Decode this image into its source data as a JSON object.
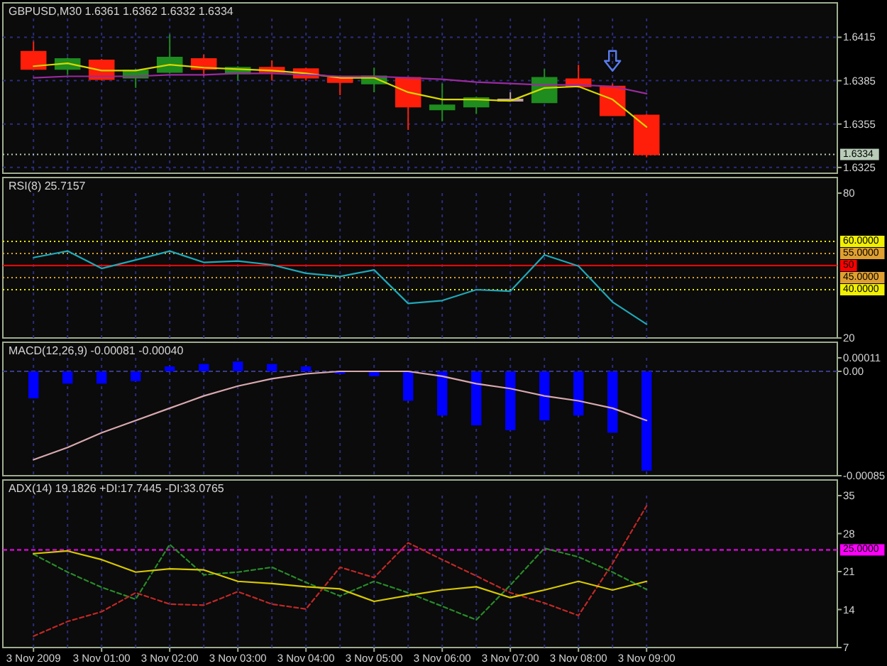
{
  "chart_data": [
    {
      "type": "candlestick",
      "title": "GBPUSD,M30 1.6361 1.6362 1.6332 1.6334",
      "categories": [
        null,
        null,
        null,
        null,
        null,
        null,
        null,
        null,
        null,
        null,
        null,
        null,
        null,
        null,
        null,
        null,
        null,
        null,
        null
      ],
      "ohlc": [
        [
          1.6405,
          1.6412,
          1.6393,
          1.6393
        ],
        [
          1.6393,
          1.6401,
          1.6389,
          1.64
        ],
        [
          1.6399,
          1.64,
          1.6385,
          1.6386
        ],
        [
          1.6387,
          1.6393,
          1.638,
          1.6392
        ],
        [
          1.6391,
          1.6417,
          1.639,
          1.6401
        ],
        [
          1.64,
          1.6403,
          1.6388,
          1.6393
        ],
        [
          1.639,
          1.6395,
          1.6385,
          1.6394
        ],
        [
          1.6394,
          1.6399,
          1.6385,
          1.6391
        ],
        [
          1.6393,
          1.6394,
          1.6385,
          1.6387
        ],
        [
          1.6387,
          1.6388,
          1.6375,
          1.6384
        ],
        [
          1.6383,
          1.6394,
          1.6377,
          1.6388
        ],
        [
          1.6387,
          1.6387,
          1.6351,
          1.6367
        ],
        [
          1.6365,
          1.6383,
          1.6357,
          1.6368
        ],
        [
          1.6367,
          1.6374,
          1.6362,
          1.6373
        ],
        [
          1.6372,
          1.6377,
          1.6371,
          1.6372
        ],
        [
          1.637,
          1.6393,
          1.637,
          1.6387
        ],
        [
          1.6386,
          1.6396,
          1.638,
          1.6381
        ],
        [
          1.6381,
          1.6383,
          1.6361,
          1.6361
        ],
        [
          1.6361,
          1.6362,
          1.6332,
          1.6334
        ]
      ],
      "colors": [
        "#ff1e0a",
        "#1e8c1e",
        "#ff1e0a",
        "#1e8c1e",
        "#1e8c1e",
        "#ff1e0a",
        "#1e8c1e",
        "#ff1e0a",
        "#ff1e0a",
        "#ff1e0a",
        "#1e8c1e",
        "#ff1e0a",
        "#1e8c1e",
        "#1e8c1e",
        "#c0a0a0",
        "#1e8c1e",
        "#ff1e0a",
        "#ff1e0a",
        "#ff1e0a"
      ],
      "series": [
        {
          "type": "line",
          "color": "#d8d800",
          "values": [
            1.6395,
            1.6397,
            1.6392,
            1.6392,
            1.6396,
            1.6394,
            1.6393,
            1.6392,
            1.639,
            1.6387,
            1.6387,
            1.6377,
            1.6372,
            1.6372,
            1.6371,
            1.638,
            1.6381,
            1.6372,
            1.6353
          ]
        },
        {
          "type": "line",
          "color": "#9a2aa0",
          "values": [
            1.6387,
            1.6388,
            1.6388,
            1.6388,
            1.6389,
            1.6389,
            1.639,
            1.639,
            1.6389,
            1.6388,
            1.6388,
            1.6387,
            1.6386,
            1.6384,
            1.6383,
            1.6382,
            1.6382,
            1.6381,
            1.6376
          ]
        }
      ],
      "ylim": [
        1.6321,
        1.6428
      ],
      "yticks": [
        1.6325,
        1.6355,
        1.6385,
        1.6415
      ],
      "ref_lines": [
        {
          "axis": "y",
          "value": 1.6334,
          "label": "1.6334",
          "color": "#b8ccb8",
          "line_style": "dotted"
        }
      ],
      "grid": true,
      "tick_labels": "y"
    },
    {
      "type": "line",
      "title": "RSI(8) 25.7157",
      "categories": [
        null,
        null,
        null,
        null,
        null,
        null,
        null,
        null,
        null,
        null,
        null,
        null,
        null,
        null,
        null,
        null,
        null,
        null,
        null
      ],
      "series": [
        {
          "color": "#20a8b8",
          "values": [
            53.3,
            56,
            48.8,
            52.3,
            56,
            51.3,
            51.9,
            50.3,
            46.8,
            45.5,
            48.2,
            34.3,
            35.5,
            40,
            39.4,
            54.4,
            49.8,
            34.9,
            25.7
          ]
        }
      ],
      "ylim": [
        20,
        80
      ],
      "yticks": [
        20,
        80
      ],
      "ref_lines": [
        {
          "axis": "y",
          "value": 60,
          "label": "60.0000",
          "color": "#f0f000",
          "line_style": "dotted"
        },
        {
          "axis": "y",
          "value": 55,
          "label": "55.0000",
          "color": "#e0a030",
          "line_style": "dotted"
        },
        {
          "axis": "y",
          "value": 50,
          "label": "50",
          "color": "#ff0000",
          "line_style": "solid"
        },
        {
          "axis": "y",
          "value": 45,
          "label": "45.0000",
          "color": "#e0a030",
          "line_style": "dotted"
        },
        {
          "axis": "y",
          "value": 40,
          "label": "40.0000",
          "color": "#f0f000",
          "line_style": "dotted"
        }
      ],
      "grid": "x",
      "tick_labels": "y"
    },
    {
      "type": "bar",
      "title": "MACD(12,26,9) -0.00081 -0.00040",
      "categories": [
        null,
        null,
        null,
        null,
        null,
        null,
        null,
        null,
        null,
        null,
        null,
        null,
        null,
        null,
        null,
        null,
        null,
        null,
        null
      ],
      "series": [
        {
          "type": "bar",
          "color": "#0000ff",
          "values": [
            -0.00022,
            -0.0001,
            -0.0001,
            -8e-05,
            4e-05,
            6e-05,
            8e-05,
            6e-05,
            4e-05,
            -2e-05,
            -4e-05,
            -0.00024,
            -0.00036,
            -0.00044,
            -0.00048,
            -0.0004,
            -0.00036,
            -0.0005,
            -0.00081
          ]
        },
        {
          "type": "line",
          "color": "#d8a8b0",
          "values": [
            -0.00072,
            -0.00062,
            -0.0005,
            -0.0004,
            -0.0003,
            -0.0002,
            -0.00012,
            -6e-05,
            -2e-05,
            0,
            0,
            0,
            -4e-05,
            -0.0001,
            -0.00014,
            -0.0002,
            -0.00024,
            -0.0003,
            -0.0004
          ]
        }
      ],
      "ylim": [
        -0.00085,
        0.00011
      ],
      "yticks": [
        -0.00085,
        {
          "value": 0,
          "label": "0.00"
        },
        0.00011
      ],
      "ref_lines": [
        {
          "axis": "y",
          "value": 0,
          "color": "#3a3a8a",
          "line_style": "dashed"
        }
      ],
      "grid": "x",
      "tick_labels": "y"
    },
    {
      "type": "line",
      "title": "ADX(14) 19.1826 +DI:17.7445 -DI:33.0765",
      "categories": [
        "3 Nov 2009",
        null,
        "3 Nov 01:00",
        null,
        "3 Nov 02:00",
        null,
        "3 Nov 03:00",
        null,
        "3 Nov 04:00",
        null,
        "3 Nov 05:00",
        null,
        "3 Nov 06:00",
        null,
        "3 Nov 07:00",
        null,
        "3 Nov 08:00",
        null,
        "3 Nov 09:00"
      ],
      "series": [
        {
          "color": "#2a8a2a",
          "line_style": "dashed",
          "values": [
            24.2,
            20.9,
            18.1,
            15.9,
            26,
            20.4,
            20.9,
            21.8,
            19,
            16.5,
            19.2,
            17.1,
            14.6,
            12.1,
            18.5,
            25.3,
            23.7,
            20.9,
            17.7
          ]
        },
        {
          "color": "#c02828",
          "line_style": "dashed",
          "values": [
            9.1,
            11.8,
            13.6,
            17.1,
            15,
            14.8,
            17.3,
            15,
            14.1,
            21.8,
            19.9,
            26.3,
            23.2,
            20.2,
            17.1,
            15.2,
            12.9,
            22.5,
            33.1
          ]
        },
        {
          "color": "#d8c800",
          "values": [
            24.3,
            24.8,
            23.2,
            20.9,
            21.5,
            21.3,
            19.2,
            18.8,
            18.2,
            17.8,
            15.5,
            16.6,
            17.6,
            18.2,
            16.2,
            17.6,
            19.2,
            17.6,
            19.2
          ]
        }
      ],
      "ylim": [
        7,
        35
      ],
      "yticks": [
        7,
        14,
        21,
        28,
        35
      ],
      "ref_lines": [
        {
          "axis": "y",
          "value": 25,
          "label": "25.0000",
          "color": "#ff00ff",
          "line_style": "dashed"
        }
      ],
      "grid": "x"
    }
  ]
}
